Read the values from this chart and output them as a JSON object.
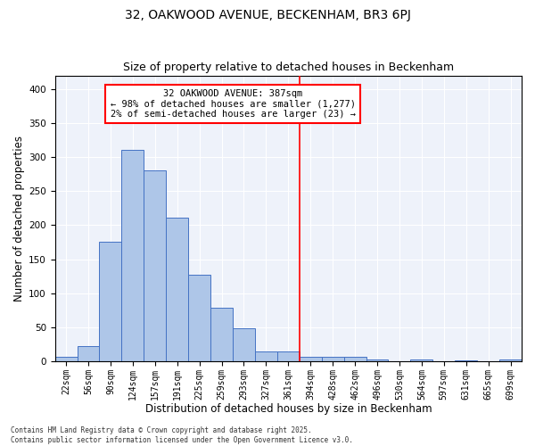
{
  "title1": "32, OAKWOOD AVENUE, BECKENHAM, BR3 6PJ",
  "title2": "Size of property relative to detached houses in Beckenham",
  "xlabel": "Distribution of detached houses by size in Beckenham",
  "ylabel": "Number of detached properties",
  "bar_labels": [
    "22sqm",
    "56sqm",
    "90sqm",
    "124sqm",
    "157sqm",
    "191sqm",
    "225sqm",
    "259sqm",
    "293sqm",
    "327sqm",
    "361sqm",
    "394sqm",
    "428sqm",
    "462sqm",
    "496sqm",
    "530sqm",
    "564sqm",
    "597sqm",
    "631sqm",
    "665sqm",
    "699sqm"
  ],
  "bar_values": [
    6,
    22,
    175,
    311,
    281,
    211,
    127,
    78,
    48,
    15,
    15,
    7,
    6,
    7,
    3,
    0,
    2,
    0,
    1,
    0,
    3
  ],
  "bar_color": "#aec6e8",
  "bar_edge_color": "#4472c4",
  "vline_color": "#ff0000",
  "annotation_text": "32 OAKWOOD AVENUE: 387sqm\n← 98% of detached houses are smaller (1,277)\n2% of semi-detached houses are larger (23) →",
  "annotation_box_color": "#ffffff",
  "annotation_box_edge_color": "#ff0000",
  "ylim": [
    0,
    420
  ],
  "yticks": [
    0,
    50,
    100,
    150,
    200,
    250,
    300,
    350,
    400
  ],
  "bg_color": "#eef2fa",
  "footer_text": "Contains HM Land Registry data © Crown copyright and database right 2025.\nContains public sector information licensed under the Open Government Licence v3.0.",
  "title1_fontsize": 10,
  "title2_fontsize": 9,
  "axis_label_fontsize": 8.5,
  "tick_fontsize": 7,
  "annotation_fontsize": 7.5,
  "footer_fontsize": 5.5,
  "vline_pos": 10.5
}
